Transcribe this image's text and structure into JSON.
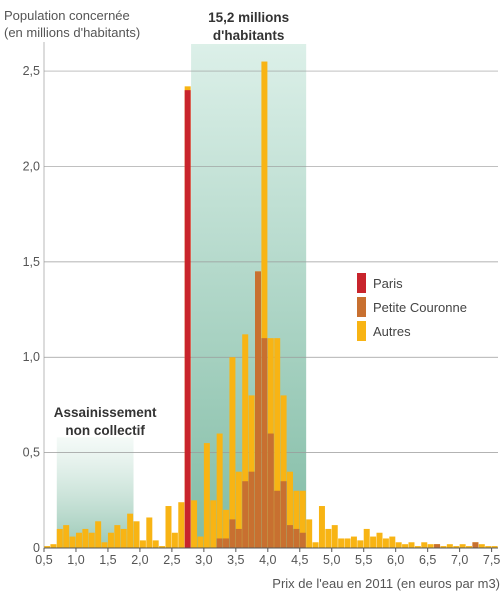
{
  "chart_data": {
    "type": "bar",
    "ylabel": "Population concernée\n(en millions d'habitants)",
    "xlabel": "Prix de l'eau en 2011 (en euros par m3)",
    "xlim": [
      0.5,
      7.6
    ],
    "ylim": [
      0,
      2.6
    ],
    "bin_width": 0.1,
    "y_ticks": [
      "0",
      "0,5",
      "1,0",
      "1,5",
      "2,0",
      "2,5"
    ],
    "y_tick_values": [
      0,
      0.5,
      1.0,
      1.5,
      2.0,
      2.5
    ],
    "x_ticks": [
      "0,5",
      "1,0",
      "1,5",
      "2,0",
      "2,5",
      "3,0",
      "3,5",
      "4,0",
      "4,5",
      "5,0",
      "5,5",
      "6,0",
      "6,5",
      "7,0",
      "7,5"
    ],
    "x_tick_values": [
      0.5,
      1.0,
      1.5,
      2.0,
      2.5,
      3.0,
      3.5,
      4.0,
      4.5,
      5.0,
      5.5,
      6.0,
      6.5,
      7.0,
      7.5
    ],
    "grid": true,
    "legend_position": "right",
    "colors": {
      "Paris": "#c8242c",
      "Petite Couronne": "#c87030",
      "Autres": "#f8b414"
    },
    "series": [
      {
        "name": "Autres",
        "bins": [
          [
            0.5,
            0.01
          ],
          [
            0.6,
            0.02
          ],
          [
            0.7,
            0.1
          ],
          [
            0.8,
            0.12
          ],
          [
            0.9,
            0.06
          ],
          [
            1.0,
            0.08
          ],
          [
            1.1,
            0.1
          ],
          [
            1.2,
            0.08
          ],
          [
            1.3,
            0.14
          ],
          [
            1.4,
            0.03
          ],
          [
            1.5,
            0.08
          ],
          [
            1.6,
            0.12
          ],
          [
            1.7,
            0.1
          ],
          [
            1.8,
            0.18
          ],
          [
            1.9,
            0.14
          ],
          [
            2.0,
            0.04
          ],
          [
            2.1,
            0.16
          ],
          [
            2.2,
            0.04
          ],
          [
            2.3,
            0.01
          ],
          [
            2.4,
            0.22
          ],
          [
            2.5,
            0.08
          ],
          [
            2.6,
            0.24
          ],
          [
            2.7,
            2.42
          ],
          [
            2.8,
            0.25
          ],
          [
            2.9,
            0.06
          ],
          [
            3.0,
            0.55
          ],
          [
            3.1,
            0.25
          ],
          [
            3.2,
            0.6
          ],
          [
            3.3,
            0.2
          ],
          [
            3.4,
            1.0
          ],
          [
            3.5,
            0.4
          ],
          [
            3.6,
            1.12
          ],
          [
            3.7,
            0.8
          ],
          [
            3.8,
            1.45
          ],
          [
            3.9,
            2.55
          ],
          [
            4.0,
            1.1
          ],
          [
            4.1,
            1.1
          ],
          [
            4.2,
            0.8
          ],
          [
            4.3,
            0.4
          ],
          [
            4.4,
            0.3
          ],
          [
            4.5,
            0.3
          ],
          [
            4.6,
            0.15
          ],
          [
            4.7,
            0.03
          ],
          [
            4.8,
            0.22
          ],
          [
            4.9,
            0.1
          ],
          [
            5.0,
            0.12
          ],
          [
            5.1,
            0.05
          ],
          [
            5.2,
            0.05
          ],
          [
            5.3,
            0.06
          ],
          [
            5.4,
            0.04
          ],
          [
            5.5,
            0.1
          ],
          [
            5.6,
            0.06
          ],
          [
            5.7,
            0.08
          ],
          [
            5.8,
            0.05
          ],
          [
            5.9,
            0.06
          ],
          [
            6.0,
            0.03
          ],
          [
            6.1,
            0.02
          ],
          [
            6.2,
            0.03
          ],
          [
            6.3,
            0.01
          ],
          [
            6.4,
            0.03
          ],
          [
            6.5,
            0.02
          ],
          [
            6.6,
            0.02
          ],
          [
            6.7,
            0.01
          ],
          [
            6.8,
            0.02
          ],
          [
            6.9,
            0.01
          ],
          [
            7.0,
            0.02
          ],
          [
            7.1,
            0.01
          ],
          [
            7.2,
            0.03
          ],
          [
            7.3,
            0.02
          ],
          [
            7.4,
            0.01
          ],
          [
            7.5,
            0.01
          ]
        ]
      },
      {
        "name": "Petite Couronne",
        "bins": [
          [
            3.2,
            0.05
          ],
          [
            3.3,
            0.05
          ],
          [
            3.4,
            0.15
          ],
          [
            3.5,
            0.1
          ],
          [
            3.6,
            0.35
          ],
          [
            3.7,
            0.4
          ],
          [
            3.8,
            1.45
          ],
          [
            3.9,
            1.1
          ],
          [
            4.0,
            0.6
          ],
          [
            4.1,
            0.3
          ],
          [
            4.2,
            0.35
          ],
          [
            4.3,
            0.12
          ],
          [
            4.4,
            0.1
          ],
          [
            4.5,
            0.08
          ],
          [
            6.6,
            0.02
          ],
          [
            7.2,
            0.03
          ]
        ]
      },
      {
        "name": "Paris",
        "bins": [
          [
            2.7,
            2.4
          ]
        ]
      }
    ],
    "annotations": [
      {
        "text": "15,2 millions\nd'habitants",
        "x_range": [
          2.8,
          4.6
        ]
      },
      {
        "text": "Assainissement\nnon collectif",
        "x_range": [
          0.7,
          1.9
        ]
      }
    ]
  }
}
